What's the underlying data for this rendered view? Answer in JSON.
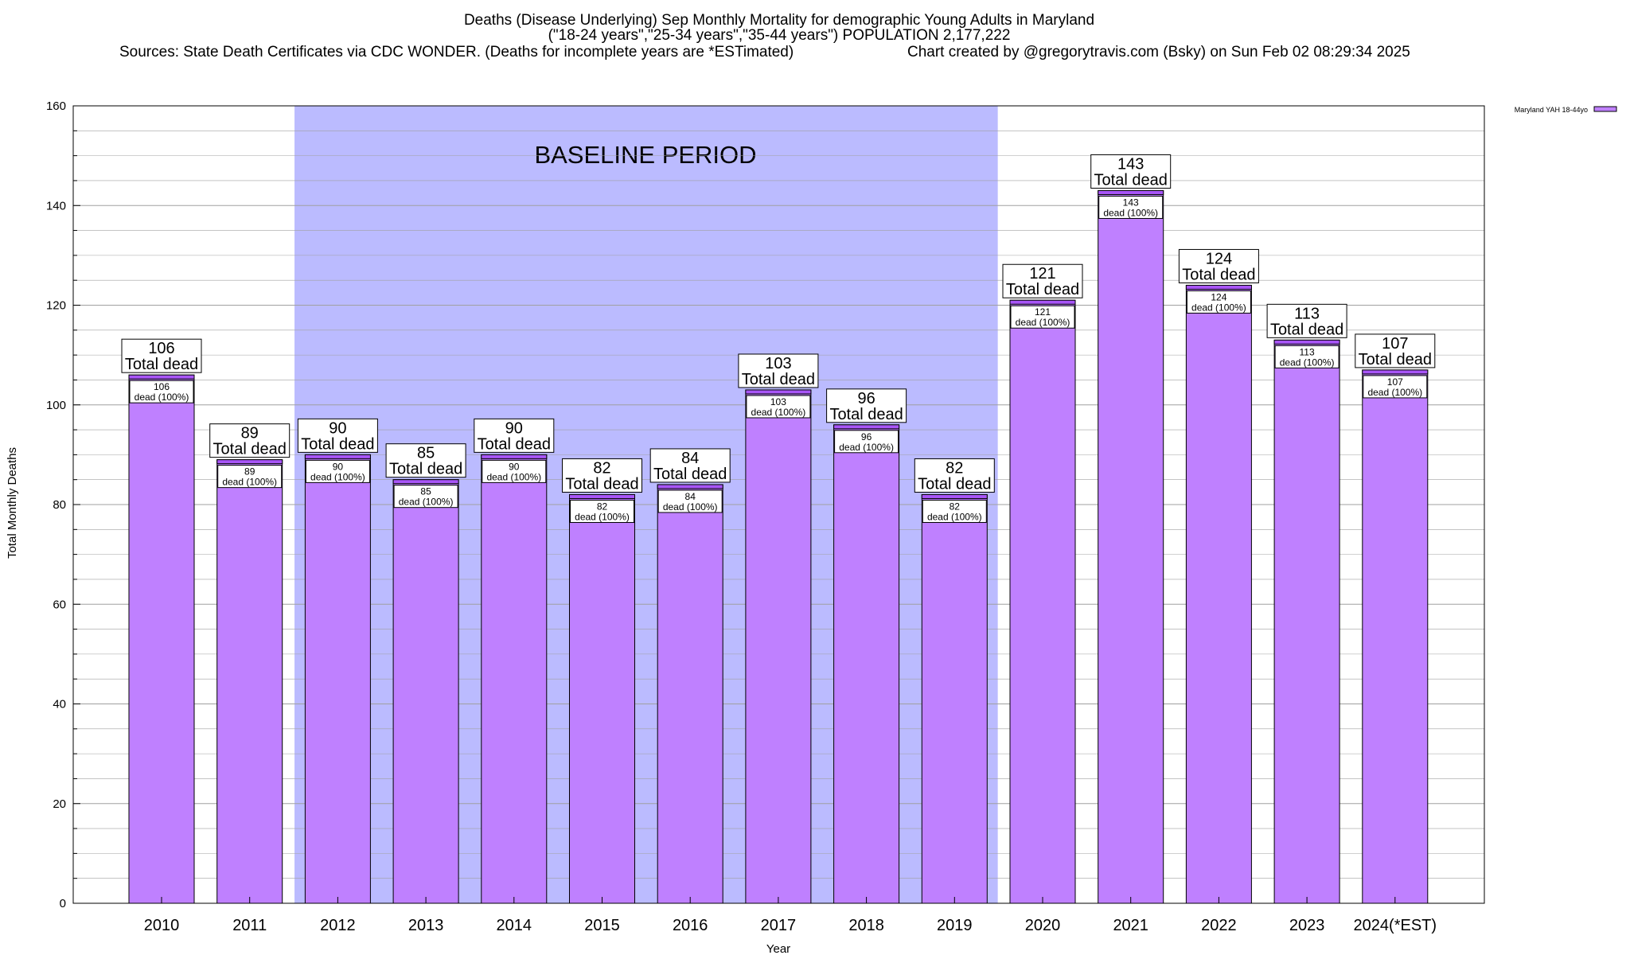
{
  "title": {
    "line1": "Deaths (Disease Underlying) Sep Monthly Mortality for demographic Young Adults in Maryland",
    "line2": "(\"18-24 years\",\"25-34 years\",\"35-44 years\") POPULATION 2,177,222",
    "line3_source": "Sources: State Death Certificates via CDC WONDER. (Deaths for incomplete years are *ESTimated)",
    "line3_credit": "Chart created by @gregorytravis.com (Bsky) on Sun Feb 02 08:29:34 2025"
  },
  "colors": {
    "bar_fill": "#bf80ff",
    "bar_top": "#a855f7",
    "baseline_band": "#bbbbff",
    "grid": "#a0a0a0"
  },
  "chart_data": {
    "type": "bar",
    "xlabel": "Year",
    "ylabel": "Total Monthly Deaths",
    "ylim": [
      0,
      160
    ],
    "yticks": [
      0,
      20,
      40,
      60,
      80,
      100,
      120,
      140,
      160
    ],
    "grid": true,
    "legend_position": "top-right",
    "categories": [
      "2010",
      "2011",
      "2012",
      "2013",
      "2014",
      "2015",
      "2016",
      "2017",
      "2018",
      "2019",
      "2020",
      "2021",
      "2022",
      "2023",
      "2024(*EST)"
    ],
    "series": [
      {
        "name": "Maryland YAH 18-44yo",
        "values": [
          106,
          89,
          90,
          85,
          90,
          82,
          84,
          103,
          96,
          82,
          121,
          143,
          124,
          113,
          107
        ]
      }
    ],
    "label_top_text": "Total dead",
    "label_inner_text": "dead (100%)",
    "annotation": {
      "text": "BASELINE PERIOD",
      "from_category": "2012",
      "to_category": "2019"
    }
  }
}
